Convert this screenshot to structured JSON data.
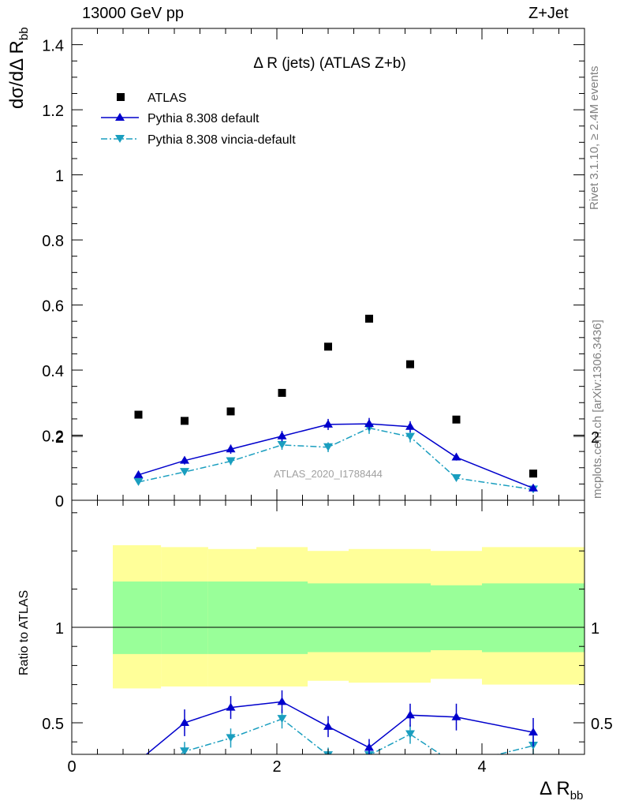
{
  "header": {
    "left": "13000 GeV pp",
    "right": "Z+Jet"
  },
  "side_labels": {
    "rivet": "Rivet 3.1.10, ≥ 2.4M events",
    "mcplots": "mcplots.cern.ch [arXiv:1306.3436]"
  },
  "upper": {
    "title": "Δ R (jets) (ATLAS Z+b)",
    "ylabel_main": "dσ/dΔ R",
    "ylabel_sub": "bb",
    "watermark": "ATLAS_2020_I1788444"
  },
  "lower": {
    "ylabel": "Ratio to ATLAS"
  },
  "xaxis": {
    "label_main": "Δ R",
    "label_sub": "bb"
  },
  "legend": [
    "ATLAS",
    "Pythia 8.308 default",
    "Pythia 8.308 vincia-default"
  ],
  "colors": {
    "data": "#000000",
    "default": "#0000cc",
    "vincia": "#1a9ebf",
    "band_inner": "#99ff99",
    "band_outer": "#ffff99"
  },
  "chart_data": [
    {
      "type": "scatter",
      "title": "Δ R (jets) (ATLAS Z+b)",
      "xlabel": "Δ R_bb",
      "ylabel": "dσ/dΔ R_bb",
      "xlim": [
        0,
        5
      ],
      "ylim": [
        0,
        1.45
      ],
      "yticks": [
        "0",
        "0.2",
        "0.4",
        "0.6",
        "0.8",
        "1",
        "1.2",
        "1.4"
      ],
      "x": [
        0.65,
        1.1,
        1.55,
        2.05,
        2.5,
        2.9,
        3.3,
        3.75,
        4.5
      ],
      "series": [
        {
          "name": "ATLAS",
          "values": [
            0.263,
            0.244,
            0.273,
            0.33,
            0.472,
            0.558,
            0.418,
            0.248,
            0.082
          ]
        },
        {
          "name": "Pythia 8.308 default",
          "values": [
            0.078,
            0.122,
            0.157,
            0.197,
            0.233,
            0.235,
            0.226,
            0.132,
            0.037
          ],
          "errors": [
            0.006,
            0.012,
            0.014,
            0.016,
            0.017,
            0.018,
            0.017,
            0.01,
            0.004
          ]
        },
        {
          "name": "Pythia 8.308 vincia-default",
          "values": [
            0.056,
            0.087,
            0.12,
            0.17,
            0.163,
            0.222,
            0.195,
            0.068,
            0.033
          ],
          "errors": [
            0.005,
            0.01,
            0.012,
            0.015,
            0.015,
            0.018,
            0.017,
            0.007,
            0.004
          ]
        }
      ],
      "watermark": "ATLAS_2020_I1788444"
    },
    {
      "type": "line",
      "ylabel": "Ratio to ATLAS",
      "xlabel": "Δ R_bb",
      "xlim": [
        0,
        5
      ],
      "ylim": [
        0.35,
        2.25
      ],
      "yticks": [
        "0.5",
        "1",
        "2"
      ],
      "xticks": [
        "0",
        "2",
        "4"
      ],
      "reference": 1,
      "bins": [
        [
          0.4,
          0.87
        ],
        [
          0.87,
          1.33
        ],
        [
          1.33,
          1.8
        ],
        [
          1.8,
          2.3
        ],
        [
          2.3,
          2.7
        ],
        [
          2.7,
          3.1
        ],
        [
          3.1,
          3.5
        ],
        [
          3.5,
          4.0
        ],
        [
          4.0,
          5.0
        ]
      ],
      "band_inner": [
        [
          0.86,
          1.24
        ],
        [
          0.86,
          1.24
        ],
        [
          0.86,
          1.24
        ],
        [
          0.86,
          1.24
        ],
        [
          0.87,
          1.23
        ],
        [
          0.87,
          1.23
        ],
        [
          0.87,
          1.23
        ],
        [
          0.88,
          1.22
        ],
        [
          0.87,
          1.23
        ]
      ],
      "band_outer": [
        [
          0.68,
          1.43
        ],
        [
          0.69,
          1.42
        ],
        [
          0.69,
          1.41
        ],
        [
          0.69,
          1.42
        ],
        [
          0.72,
          1.4
        ],
        [
          0.71,
          1.41
        ],
        [
          0.71,
          1.41
        ],
        [
          0.73,
          1.4
        ],
        [
          0.7,
          1.42
        ]
      ],
      "x": [
        0.65,
        1.1,
        1.55,
        2.05,
        2.5,
        2.9,
        3.3,
        3.75,
        4.5
      ],
      "series": [
        {
          "name": "Pythia 8.308 default",
          "values": [
            0.3,
            0.5,
            0.58,
            0.61,
            0.48,
            0.37,
            0.54,
            0.53,
            0.45
          ],
          "errors": [
            0.0,
            0.07,
            0.06,
            0.06,
            0.055,
            0.045,
            0.06,
            0.07,
            0.075
          ]
        },
        {
          "name": "Pythia 8.308 vincia-default",
          "values": [
            0.2,
            0.35,
            0.42,
            0.52,
            0.33,
            0.33,
            0.44,
            0.28,
            0.38
          ],
          "errors": [
            0.0,
            0.05,
            0.05,
            0.05,
            0.04,
            0.04,
            0.05,
            0.04,
            0.05
          ]
        }
      ]
    }
  ]
}
